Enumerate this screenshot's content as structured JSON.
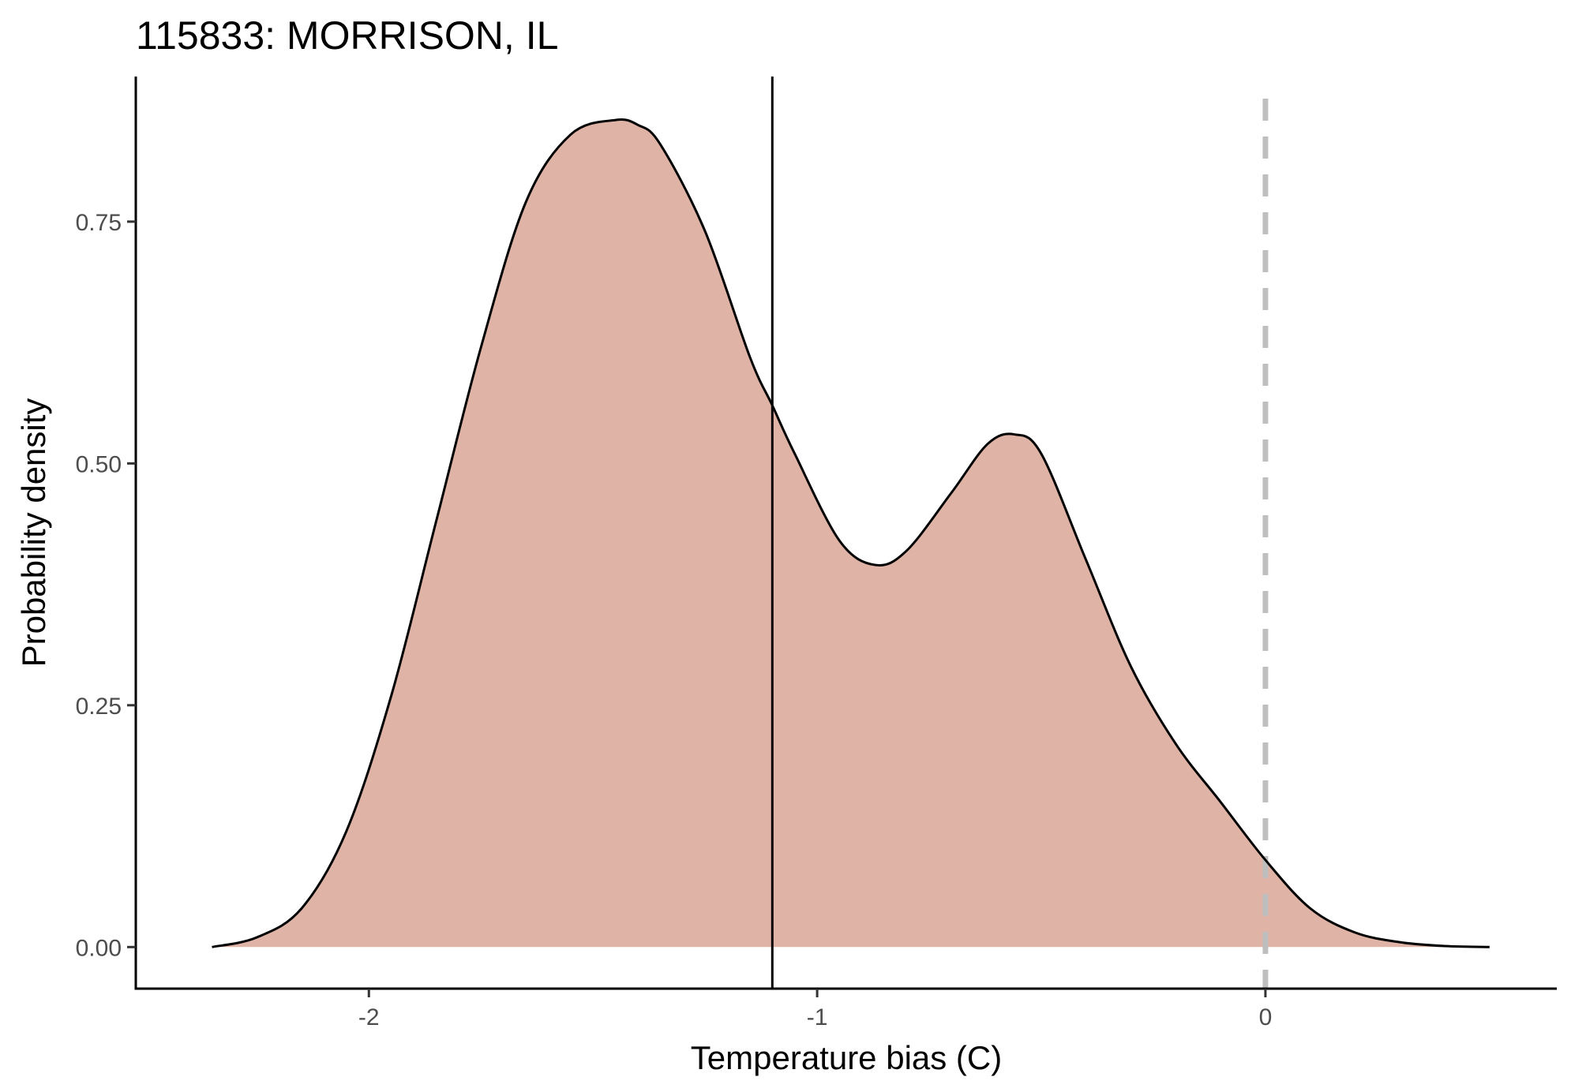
{
  "chart_data": {
    "type": "area",
    "title": "115833: MORRISON, IL",
    "xlabel": "Temperature bias (C)",
    "ylabel": "Probability density",
    "xlim": [
      -2.52,
      0.65
    ],
    "ylim": [
      -0.043,
      0.9
    ],
    "x_ticks": [
      -2,
      -1,
      0
    ],
    "x_tick_labels": [
      "-2",
      "-1",
      "0"
    ],
    "y_ticks": [
      0,
      0.25,
      0.5,
      0.75
    ],
    "y_tick_labels": [
      "0.00",
      "0.25",
      "0.50",
      "0.75"
    ],
    "grid": false,
    "legend": "none",
    "series": [
      {
        "fill_color": "#dfb3a5",
        "line_color": "#000000",
        "x": [
          -2.35,
          -2.25,
          -2.15,
          -2.05,
          -1.95,
          -1.85,
          -1.75,
          -1.65,
          -1.55,
          -1.45,
          -1.4,
          -1.35,
          -1.25,
          -1.15,
          -1.1,
          -1.05,
          -0.95,
          -0.87,
          -0.8,
          -0.7,
          -0.62,
          -0.56,
          -0.5,
          -0.4,
          -0.3,
          -0.2,
          -0.1,
          0.0,
          0.1,
          0.2,
          0.3,
          0.4,
          0.5
        ],
        "y": [
          0.0,
          0.01,
          0.04,
          0.12,
          0.26,
          0.44,
          0.62,
          0.77,
          0.84,
          0.855,
          0.85,
          0.83,
          0.74,
          0.61,
          0.56,
          0.51,
          0.42,
          0.395,
          0.41,
          0.47,
          0.52,
          0.53,
          0.51,
          0.4,
          0.29,
          0.21,
          0.15,
          0.09,
          0.04,
          0.015,
          0.005,
          0.001,
          0.0
        ]
      }
    ],
    "reference_lines": [
      {
        "x": -1.1,
        "style": "solid",
        "color": "#000000"
      },
      {
        "x": 0,
        "style": "dashed",
        "color": "#bebebe"
      }
    ]
  }
}
